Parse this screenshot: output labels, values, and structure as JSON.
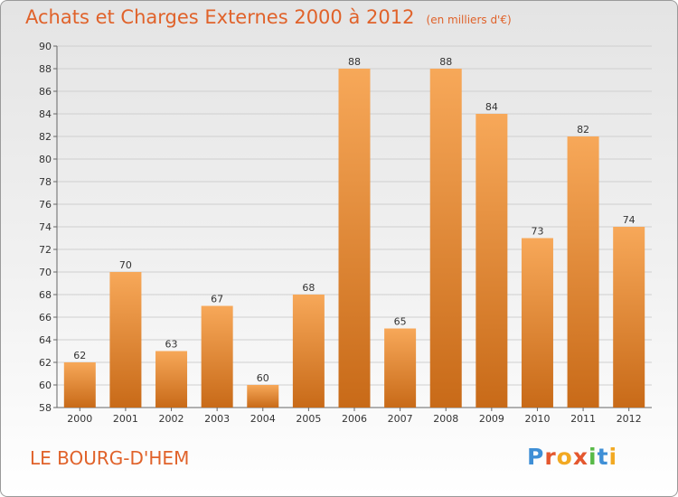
{
  "header": {
    "title": "Achats et Charges Externes 2000 à 2012",
    "subtitle": "(en milliers d'€)"
  },
  "footer": {
    "town": "LE BOURG-D'HEM",
    "logo_text": "Proxiti",
    "logo_colors": [
      "#3f8fd6",
      "#e4572e",
      "#f2a922",
      "#e4572e",
      "#58b947",
      "#3f8fd6",
      "#f2a922"
    ]
  },
  "colors": {
    "bar_top": "#f7a859",
    "bar_bottom": "#c86a18",
    "grid": "#cfcfcf",
    "text": "#333333"
  },
  "chart_data": {
    "type": "bar",
    "categories": [
      "2000",
      "2001",
      "2002",
      "2003",
      "2004",
      "2005",
      "2006",
      "2007",
      "2008",
      "2009",
      "2010",
      "2011",
      "2012"
    ],
    "values": [
      62,
      70,
      63,
      67,
      60,
      68,
      88,
      65,
      88,
      84,
      73,
      82,
      74
    ],
    "ylim": [
      58,
      90
    ],
    "yticks": [
      58,
      60,
      62,
      64,
      66,
      68,
      70,
      72,
      74,
      76,
      78,
      80,
      82,
      84,
      86,
      88,
      90
    ],
    "grid": true
  }
}
